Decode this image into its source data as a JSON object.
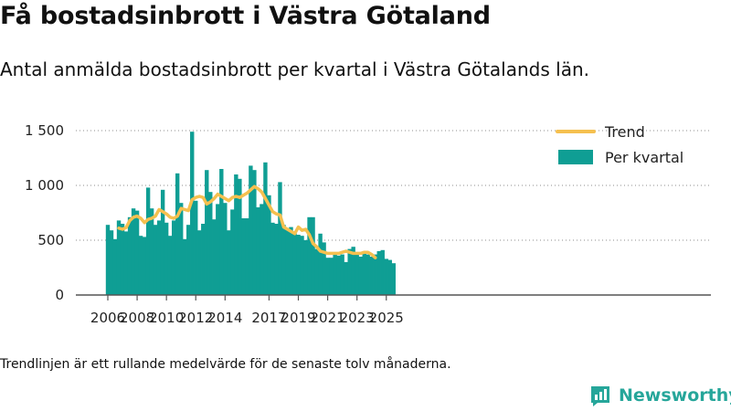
{
  "header": {
    "title": "Få bostadsinbrott i Västra Götaland",
    "subtitle": "Antal anmälda bostadsinbrott per kvartal i Västra Götalands län."
  },
  "footnote": "Trendlinjen är ett rullande medelvärde för de senaste tolv månaderna.",
  "brand": {
    "name": "Newsworthy",
    "icon": "newsworthy-logo-icon",
    "color": "#26a69a"
  },
  "colors": {
    "bars": "#0f9e94",
    "trend": "#f5c04f",
    "axis": "#555555",
    "grid": "#333333"
  },
  "chart_data": {
    "type": "bar",
    "title": "Få bostadsinbrott i Västra Götaland",
    "xlabel": "",
    "ylabel": "",
    "grid": false,
    "legend_position": "top-right",
    "start": {
      "year": 2006,
      "quarter": 1
    },
    "ylim": [
      0,
      1500
    ],
    "y_ticks": [
      {
        "value": 0,
        "label": "0"
      },
      {
        "value": 500,
        "label": "500"
      },
      {
        "value": 1000,
        "label": "1 000"
      },
      {
        "value": 1500,
        "label": "1 500"
      }
    ],
    "x_ticks": [
      {
        "year": 2006,
        "label": "2006"
      },
      {
        "year": 2008,
        "label": "2008"
      },
      {
        "year": 2010,
        "label": "2010"
      },
      {
        "year": 2012,
        "label": "2012"
      },
      {
        "year": 2014,
        "label": "2014"
      },
      {
        "year": 2017,
        "label": "2017"
      },
      {
        "year": 2019,
        "label": "2019"
      },
      {
        "year": 2021,
        "label": "2021"
      },
      {
        "year": 2023,
        "label": "2023"
      },
      {
        "year": 2025,
        "label": "2025"
      }
    ],
    "series": [
      {
        "name": "Trend",
        "kind": "line",
        "start_index": 3,
        "values": [
          610,
          600,
          615,
          680,
          710,
          720,
          700,
          660,
          690,
          700,
          720,
          780,
          760,
          740,
          710,
          700,
          720,
          790,
          780,
          770,
          870,
          890,
          900,
          890,
          830,
          850,
          880,
          920,
          900,
          880,
          860,
          890,
          900,
          890,
          910,
          930,
          960,
          990,
          970,
          940,
          880,
          820,
          760,
          740,
          730,
          620,
          600,
          580,
          560,
          620,
          590,
          600,
          550,
          470,
          440,
          400,
          390,
          380,
          380,
          380,
          380,
          390,
          400,
          390,
          380,
          380,
          380,
          390,
          390,
          370,
          340
        ]
      },
      {
        "name": "Per kvartal",
        "kind": "bar",
        "values": [
          640,
          590,
          510,
          680,
          650,
          580,
          710,
          790,
          770,
          540,
          530,
          980,
          790,
          640,
          680,
          960,
          660,
          540,
          680,
          1110,
          840,
          510,
          640,
          1490,
          860,
          590,
          650,
          1140,
          940,
          690,
          830,
          1150,
          840,
          590,
          780,
          1100,
          1060,
          700,
          700,
          1180,
          1140,
          800,
          830,
          1210,
          910,
          660,
          650,
          1030,
          640,
          610,
          620,
          580,
          550,
          540,
          500,
          710,
          710,
          420,
          560,
          480,
          340,
          340,
          390,
          360,
          370,
          300,
          420,
          440,
          370,
          350,
          390,
          370,
          350,
          370,
          400,
          410,
          330,
          320,
          290
        ]
      }
    ]
  }
}
